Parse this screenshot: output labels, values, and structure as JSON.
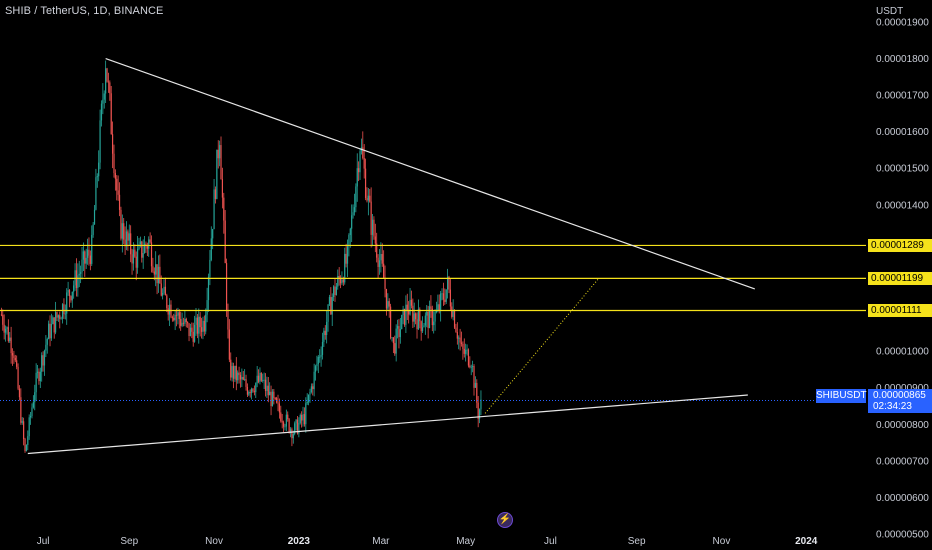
{
  "header": {
    "title": "SHIB / TetherUS, 1D, BINANCE"
  },
  "axis": {
    "unit": "USDT",
    "y_ticks": [
      "0.00001900",
      "0.00001800",
      "0.00001700",
      "0.00001600",
      "0.00001500",
      "0.00001400",
      "0.00001000",
      "0.00000900",
      "0.00000800",
      "0.00000700",
      "0.00000600",
      "0.00000500"
    ],
    "x_ticks": [
      {
        "label": "Jul",
        "date": "2022-07-01",
        "bold": false
      },
      {
        "label": "Sep",
        "date": "2022-09-01",
        "bold": false
      },
      {
        "label": "Nov",
        "date": "2022-11-01",
        "bold": false
      },
      {
        "label": "2023",
        "date": "2023-01-01",
        "bold": true
      },
      {
        "label": "Mar",
        "date": "2023-03-01",
        "bold": false
      },
      {
        "label": "May",
        "date": "2023-05-01",
        "bold": false
      },
      {
        "label": "Jul",
        "date": "2023-07-01",
        "bold": false
      },
      {
        "label": "Sep",
        "date": "2023-09-01",
        "bold": false
      },
      {
        "label": "Nov",
        "date": "2023-11-01",
        "bold": false
      },
      {
        "label": "2024",
        "date": "2024-01-01",
        "bold": true
      }
    ]
  },
  "levels": [
    {
      "label": "0.00001289",
      "value": 1.289e-05
    },
    {
      "label": "0.00001199",
      "value": 1.199e-05
    },
    {
      "label": "0.00001111",
      "value": 1.111e-05
    }
  ],
  "current": {
    "symbol": "SHIBUSDT",
    "price": "0.00000865",
    "countdown": "02:34:23",
    "value": 8.65e-06
  },
  "colors": {
    "up": "#26a69a",
    "down": "#ef5350",
    "level": "#f5e21b",
    "current": "#2962ff",
    "trend": "#e6e6e6",
    "projection": "#f5e21b",
    "grid": "#1c1c1c"
  },
  "chart_data": {
    "type": "line",
    "series": [
      {
        "values": [
          [
            "2022-06-01",
            1.1e-05
          ],
          [
            "2022-06-10",
            1e-05
          ],
          [
            "2022-06-18",
            7.2e-06
          ],
          [
            "2022-06-25",
            9e-06
          ],
          [
            "2022-07-05",
            1.05e-05
          ],
          [
            "2022-07-15",
            1.12e-05
          ],
          [
            "2022-07-25",
            1.2e-05
          ],
          [
            "2022-08-05",
            1.28e-05
          ],
          [
            "2022-08-15",
            1.8e-05
          ],
          [
            "2022-08-25",
            1.35e-05
          ],
          [
            "2022-09-05",
            1.25e-05
          ],
          [
            "2022-09-15",
            1.3e-05
          ],
          [
            "2022-09-25",
            1.15e-05
          ],
          [
            "2022-10-05",
            1.1e-05
          ],
          [
            "2022-10-15",
            1.05e-05
          ],
          [
            "2022-10-25",
            1.08e-05
          ],
          [
            "2022-11-05",
            1.6e-05
          ],
          [
            "2022-11-12",
            9.5e-06
          ],
          [
            "2022-11-25",
            9e-06
          ],
          [
            "2022-12-05",
            9.2e-06
          ],
          [
            "2022-12-15",
            8.5e-06
          ],
          [
            "2022-12-28",
            7.8e-06
          ],
          [
            "2023-01-05",
            8.2e-06
          ],
          [
            "2023-01-15",
            9.8e-06
          ],
          [
            "2023-01-25",
            1.15e-05
          ],
          [
            "2023-02-05",
            1.25e-05
          ],
          [
            "2023-02-14",
            1.57e-05
          ],
          [
            "2023-02-22",
            1.35e-05
          ],
          [
            "2023-03-03",
            1.2e-05
          ],
          [
            "2023-03-10",
            1.01e-05
          ],
          [
            "2023-03-20",
            1.12e-05
          ],
          [
            "2023-03-30",
            1.08e-05
          ],
          [
            "2023-04-10",
            1.1e-05
          ],
          [
            "2023-04-18",
            1.18e-05
          ],
          [
            "2023-04-28",
            1e-05
          ],
          [
            "2023-05-05",
            9.8e-06
          ],
          [
            "2023-05-10",
            8.3e-06
          ],
          [
            "2023-05-13",
            8.65e-06
          ]
        ]
      }
    ],
    "trendlines": [
      {
        "from": [
          "2022-08-15",
          1.8e-05
        ],
        "to": [
          "2023-11-25",
          1.17e-05
        ]
      },
      {
        "from": [
          "2022-06-20",
          7.2e-06
        ],
        "to": [
          "2023-11-20",
          8.8e-06
        ]
      }
    ],
    "projection": {
      "from": [
        "2023-05-15",
        8.3e-06
      ],
      "to": [
        "2023-08-05",
        1.2e-05
      ]
    },
    "ylim": [
      5e-06,
      1.96e-05
    ],
    "xlim": [
      "2022-05-31",
      "2024-02-13"
    ],
    "grid": false
  }
}
